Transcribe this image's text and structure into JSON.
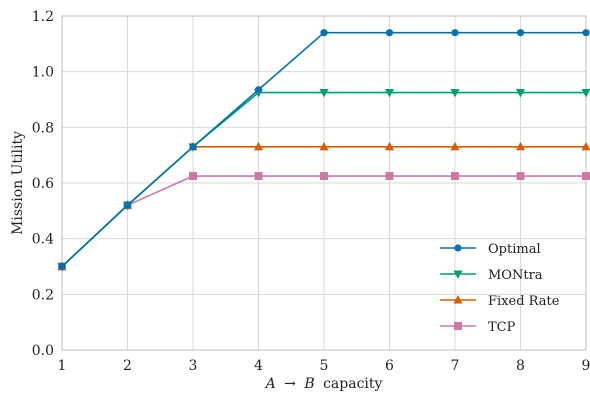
{
  "chart_data": {
    "type": "line",
    "xlabel": {
      "pre": "A",
      "arrow": "→",
      "var": "B",
      "post": "capacity"
    },
    "ylabel": "Mission Utility",
    "xlim": [
      1,
      9
    ],
    "ylim": [
      0.0,
      1.2
    ],
    "xticks": [
      "1",
      "2",
      "3",
      "4",
      "5",
      "6",
      "7",
      "8",
      "9"
    ],
    "yticks": [
      "0.0",
      "0.2",
      "0.4",
      "0.6",
      "0.8",
      "1.0",
      "1.2"
    ],
    "grid": true,
    "legend_position": "lower-right",
    "x": [
      1,
      2,
      3,
      4,
      5,
      6,
      7,
      8,
      9
    ],
    "series": [
      {
        "name": "Optimal",
        "color": "#0072b2",
        "marker": "circle",
        "values": [
          0.3,
          0.52,
          0.73,
          0.935,
          1.14,
          1.14,
          1.14,
          1.14,
          1.14
        ]
      },
      {
        "name": "MONtra",
        "color": "#009e73",
        "marker": "triangle-down",
        "values": [
          0.3,
          0.52,
          0.73,
          0.925,
          0.925,
          0.925,
          0.925,
          0.925,
          0.925
        ]
      },
      {
        "name": "Fixed Rate",
        "color": "#d55e00",
        "marker": "triangle-up",
        "values": [
          0.3,
          0.52,
          0.73,
          0.73,
          0.73,
          0.73,
          0.73,
          0.73,
          0.73
        ]
      },
      {
        "name": "TCP",
        "color": "#cc79a7",
        "marker": "square",
        "values": [
          0.3,
          0.52,
          0.625,
          0.625,
          0.625,
          0.625,
          0.625,
          0.625,
          0.625
        ]
      }
    ]
  }
}
